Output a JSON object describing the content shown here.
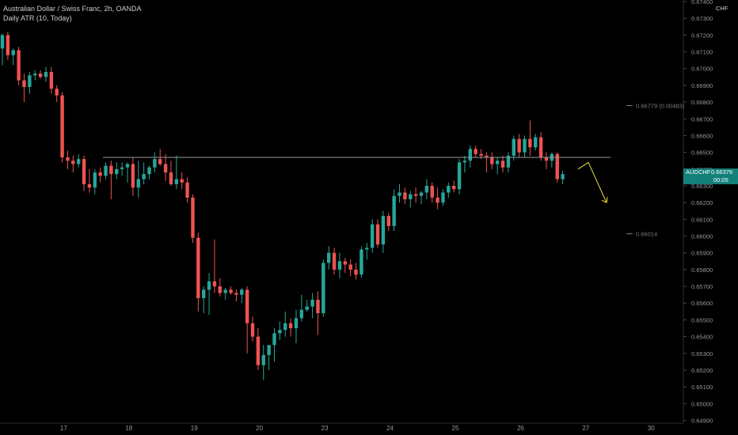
{
  "legend": {
    "title": "Australian Dollar / Swiss Franc, 2h, OANDA",
    "indicator": "Daily ATR (10, Today)"
  },
  "axis": {
    "unit_label": "CHF",
    "y_ticks": [
      "0.67400",
      "0.67300",
      "0.67200",
      "0.67100",
      "0.67000",
      "0.66900",
      "0.66800",
      "0.66700",
      "0.66600",
      "0.66500",
      "0.66400",
      "0.66300",
      "0.66200",
      "0.66100",
      "0.66000",
      "0.65900",
      "0.65800",
      "0.65700",
      "0.65600",
      "0.65500",
      "0.65400",
      "0.65300",
      "0.65200",
      "0.65100",
      "0.65000",
      "0.64900"
    ],
    "x_ticks": [
      "17",
      "18",
      "19",
      "20",
      "23",
      "24",
      "25",
      "26",
      "27",
      "30"
    ]
  },
  "price_tag": {
    "symbol": "AUDCHF",
    "price": "0.66376",
    "countdown": "00:05"
  },
  "annotations": {
    "atr_upper": "0.66779 (0.00483)",
    "atr_lower": "0.66014"
  },
  "colors": {
    "up": "#26a69a",
    "down": "#ef5350",
    "arrow": "#f0e442",
    "hline": "#9598a1"
  },
  "chart_data": {
    "type": "candlestick",
    "title": "Australian Dollar / Swiss Franc, 2h, OANDA",
    "y_range": [
      0.649,
      0.674
    ],
    "x_date_labels": [
      "17",
      "18",
      "19",
      "20",
      "23",
      "24",
      "25",
      "26",
      "27",
      "30"
    ],
    "horizontal_line": 0.6647,
    "atr_levels": {
      "upper": 0.66779,
      "lower": 0.66014
    },
    "projection_arrow": [
      [
        0.664,
        0.6644
      ],
      [
        0.662
      ]
    ],
    "candles": [
      {
        "o": 0.6712,
        "h": 0.6721,
        "l": 0.6702,
        "c": 0.672
      },
      {
        "o": 0.672,
        "h": 0.6722,
        "l": 0.6705,
        "c": 0.6708
      },
      {
        "o": 0.6708,
        "h": 0.6712,
        "l": 0.6702,
        "c": 0.6711
      },
      {
        "o": 0.6711,
        "h": 0.6713,
        "l": 0.669,
        "c": 0.6693
      },
      {
        "o": 0.6693,
        "h": 0.6697,
        "l": 0.668,
        "c": 0.6689
      },
      {
        "o": 0.6689,
        "h": 0.6698,
        "l": 0.6685,
        "c": 0.6696
      },
      {
        "o": 0.6696,
        "h": 0.6699,
        "l": 0.6693,
        "c": 0.6697
      },
      {
        "o": 0.6697,
        "h": 0.6699,
        "l": 0.6694,
        "c": 0.6695
      },
      {
        "o": 0.6695,
        "h": 0.6701,
        "l": 0.6692,
        "c": 0.6698
      },
      {
        "o": 0.6698,
        "h": 0.6701,
        "l": 0.6685,
        "c": 0.6688
      },
      {
        "o": 0.6688,
        "h": 0.669,
        "l": 0.668,
        "c": 0.6684
      },
      {
        "o": 0.6684,
        "h": 0.6686,
        "l": 0.6644,
        "c": 0.6647
      },
      {
        "o": 0.6647,
        "h": 0.6651,
        "l": 0.664,
        "c": 0.6645
      },
      {
        "o": 0.6645,
        "h": 0.6648,
        "l": 0.6638,
        "c": 0.6643
      },
      {
        "o": 0.6643,
        "h": 0.6649,
        "l": 0.6641,
        "c": 0.6646
      },
      {
        "o": 0.6646,
        "h": 0.6648,
        "l": 0.6627,
        "c": 0.6631
      },
      {
        "o": 0.6631,
        "h": 0.664,
        "l": 0.6626,
        "c": 0.6629
      },
      {
        "o": 0.6629,
        "h": 0.664,
        "l": 0.6625,
        "c": 0.6638
      },
      {
        "o": 0.6638,
        "h": 0.6641,
        "l": 0.6632,
        "c": 0.6636
      },
      {
        "o": 0.6636,
        "h": 0.6644,
        "l": 0.6634,
        "c": 0.6642
      },
      {
        "o": 0.6642,
        "h": 0.6645,
        "l": 0.6622,
        "c": 0.6637
      },
      {
        "o": 0.6637,
        "h": 0.6644,
        "l": 0.6634,
        "c": 0.664
      },
      {
        "o": 0.664,
        "h": 0.6644,
        "l": 0.6636,
        "c": 0.6641
      },
      {
        "o": 0.6641,
        "h": 0.6644,
        "l": 0.6632,
        "c": 0.6643
      },
      {
        "o": 0.6643,
        "h": 0.6647,
        "l": 0.6624,
        "c": 0.6629
      },
      {
        "o": 0.6629,
        "h": 0.6645,
        "l": 0.6623,
        "c": 0.6634
      },
      {
        "o": 0.6634,
        "h": 0.6644,
        "l": 0.6631,
        "c": 0.6637
      },
      {
        "o": 0.6637,
        "h": 0.6642,
        "l": 0.6634,
        "c": 0.6641
      },
      {
        "o": 0.6641,
        "h": 0.665,
        "l": 0.6638,
        "c": 0.6646
      },
      {
        "o": 0.6646,
        "h": 0.6652,
        "l": 0.6642,
        "c": 0.6643
      },
      {
        "o": 0.6643,
        "h": 0.6649,
        "l": 0.6633,
        "c": 0.6638
      },
      {
        "o": 0.6638,
        "h": 0.6645,
        "l": 0.663,
        "c": 0.6631
      },
      {
        "o": 0.6631,
        "h": 0.6648,
        "l": 0.6628,
        "c": 0.6634
      },
      {
        "o": 0.6634,
        "h": 0.6638,
        "l": 0.6628,
        "c": 0.6632
      },
      {
        "o": 0.6632,
        "h": 0.6635,
        "l": 0.662,
        "c": 0.6623
      },
      {
        "o": 0.6623,
        "h": 0.6625,
        "l": 0.6596,
        "c": 0.6599
      },
      {
        "o": 0.6599,
        "h": 0.6602,
        "l": 0.6555,
        "c": 0.6563
      },
      {
        "o": 0.6563,
        "h": 0.657,
        "l": 0.6554,
        "c": 0.6568
      },
      {
        "o": 0.6568,
        "h": 0.6578,
        "l": 0.6553,
        "c": 0.6573
      },
      {
        "o": 0.6573,
        "h": 0.6598,
        "l": 0.6566,
        "c": 0.657
      },
      {
        "o": 0.657,
        "h": 0.6575,
        "l": 0.6564,
        "c": 0.6566
      },
      {
        "o": 0.6566,
        "h": 0.6569,
        "l": 0.6562,
        "c": 0.6568
      },
      {
        "o": 0.6568,
        "h": 0.657,
        "l": 0.6565,
        "c": 0.6566
      },
      {
        "o": 0.6566,
        "h": 0.6568,
        "l": 0.6561,
        "c": 0.6565
      },
      {
        "o": 0.6565,
        "h": 0.6569,
        "l": 0.656,
        "c": 0.6568
      },
      {
        "o": 0.6568,
        "h": 0.657,
        "l": 0.653,
        "c": 0.6548
      },
      {
        "o": 0.6548,
        "h": 0.6552,
        "l": 0.6537,
        "c": 0.654
      },
      {
        "o": 0.654,
        "h": 0.6545,
        "l": 0.652,
        "c": 0.6523
      },
      {
        "o": 0.6523,
        "h": 0.6535,
        "l": 0.6514,
        "c": 0.6529
      },
      {
        "o": 0.6529,
        "h": 0.6534,
        "l": 0.652,
        "c": 0.6535
      },
      {
        "o": 0.6535,
        "h": 0.6545,
        "l": 0.6525,
        "c": 0.6542
      },
      {
        "o": 0.6542,
        "h": 0.6549,
        "l": 0.6538,
        "c": 0.6544
      },
      {
        "o": 0.6544,
        "h": 0.6555,
        "l": 0.654,
        "c": 0.6548
      },
      {
        "o": 0.6548,
        "h": 0.6551,
        "l": 0.654,
        "c": 0.6545
      },
      {
        "o": 0.6545,
        "h": 0.6556,
        "l": 0.6536,
        "c": 0.6551
      },
      {
        "o": 0.6551,
        "h": 0.6565,
        "l": 0.6549,
        "c": 0.6556
      },
      {
        "o": 0.6556,
        "h": 0.6562,
        "l": 0.6555,
        "c": 0.6558
      },
      {
        "o": 0.6558,
        "h": 0.6566,
        "l": 0.6551,
        "c": 0.6562
      },
      {
        "o": 0.6562,
        "h": 0.6567,
        "l": 0.6541,
        "c": 0.6554
      },
      {
        "o": 0.6554,
        "h": 0.6586,
        "l": 0.6552,
        "c": 0.6584
      },
      {
        "o": 0.6584,
        "h": 0.6594,
        "l": 0.658,
        "c": 0.659
      },
      {
        "o": 0.659,
        "h": 0.6593,
        "l": 0.6577,
        "c": 0.658
      },
      {
        "o": 0.658,
        "h": 0.659,
        "l": 0.6575,
        "c": 0.6585
      },
      {
        "o": 0.6585,
        "h": 0.6587,
        "l": 0.6578,
        "c": 0.6583
      },
      {
        "o": 0.6583,
        "h": 0.6586,
        "l": 0.6576,
        "c": 0.658
      },
      {
        "o": 0.658,
        "h": 0.6584,
        "l": 0.6574,
        "c": 0.6577
      },
      {
        "o": 0.6577,
        "h": 0.6594,
        "l": 0.6575,
        "c": 0.6592
      },
      {
        "o": 0.6592,
        "h": 0.6596,
        "l": 0.6586,
        "c": 0.6593
      },
      {
        "o": 0.6593,
        "h": 0.661,
        "l": 0.659,
        "c": 0.6607
      },
      {
        "o": 0.6607,
        "h": 0.661,
        "l": 0.6593,
        "c": 0.6595
      },
      {
        "o": 0.6595,
        "h": 0.6615,
        "l": 0.659,
        "c": 0.6612
      },
      {
        "o": 0.6612,
        "h": 0.6614,
        "l": 0.6603,
        "c": 0.6606
      },
      {
        "o": 0.6606,
        "h": 0.6628,
        "l": 0.6603,
        "c": 0.6624
      },
      {
        "o": 0.6624,
        "h": 0.6631,
        "l": 0.662,
        "c": 0.6626
      },
      {
        "o": 0.6626,
        "h": 0.6629,
        "l": 0.6619,
        "c": 0.6622
      },
      {
        "o": 0.6622,
        "h": 0.6627,
        "l": 0.6617,
        "c": 0.6625
      },
      {
        "o": 0.6625,
        "h": 0.6629,
        "l": 0.662,
        "c": 0.6624
      },
      {
        "o": 0.6624,
        "h": 0.6627,
        "l": 0.6619,
        "c": 0.6626
      },
      {
        "o": 0.6626,
        "h": 0.6634,
        "l": 0.6622,
        "c": 0.663
      },
      {
        "o": 0.663,
        "h": 0.6632,
        "l": 0.662,
        "c": 0.6623
      },
      {
        "o": 0.6623,
        "h": 0.6629,
        "l": 0.6616,
        "c": 0.662
      },
      {
        "o": 0.662,
        "h": 0.6628,
        "l": 0.6618,
        "c": 0.6626
      },
      {
        "o": 0.6626,
        "h": 0.6632,
        "l": 0.6623,
        "c": 0.663
      },
      {
        "o": 0.663,
        "h": 0.6633,
        "l": 0.6626,
        "c": 0.6628
      },
      {
        "o": 0.6628,
        "h": 0.6646,
        "l": 0.6625,
        "c": 0.6644
      },
      {
        "o": 0.6644,
        "h": 0.6648,
        "l": 0.6638,
        "c": 0.6645
      },
      {
        "o": 0.6645,
        "h": 0.6654,
        "l": 0.6641,
        "c": 0.6652
      },
      {
        "o": 0.6652,
        "h": 0.6654,
        "l": 0.6647,
        "c": 0.6649
      },
      {
        "o": 0.6649,
        "h": 0.6652,
        "l": 0.6646,
        "c": 0.6648
      },
      {
        "o": 0.6648,
        "h": 0.665,
        "l": 0.6638,
        "c": 0.6647
      },
      {
        "o": 0.6647,
        "h": 0.665,
        "l": 0.664,
        "c": 0.6643
      },
      {
        "o": 0.6643,
        "h": 0.6647,
        "l": 0.6637,
        "c": 0.6645
      },
      {
        "o": 0.6645,
        "h": 0.6648,
        "l": 0.6638,
        "c": 0.6641
      },
      {
        "o": 0.6641,
        "h": 0.665,
        "l": 0.6638,
        "c": 0.6648
      },
      {
        "o": 0.6648,
        "h": 0.666,
        "l": 0.6645,
        "c": 0.6658
      },
      {
        "o": 0.6658,
        "h": 0.6661,
        "l": 0.6647,
        "c": 0.665
      },
      {
        "o": 0.665,
        "h": 0.666,
        "l": 0.6647,
        "c": 0.6658
      },
      {
        "o": 0.6658,
        "h": 0.6669,
        "l": 0.6648,
        "c": 0.6653
      },
      {
        "o": 0.6653,
        "h": 0.6661,
        "l": 0.6651,
        "c": 0.6659
      },
      {
        "o": 0.6659,
        "h": 0.6662,
        "l": 0.6645,
        "c": 0.6647
      },
      {
        "o": 0.6647,
        "h": 0.665,
        "l": 0.664,
        "c": 0.6645
      },
      {
        "o": 0.6645,
        "h": 0.665,
        "l": 0.6641,
        "c": 0.6649
      },
      {
        "o": 0.6649,
        "h": 0.665,
        "l": 0.6632,
        "c": 0.6634
      },
      {
        "o": 0.6634,
        "h": 0.6639,
        "l": 0.6631,
        "c": 0.6637
      }
    ]
  }
}
